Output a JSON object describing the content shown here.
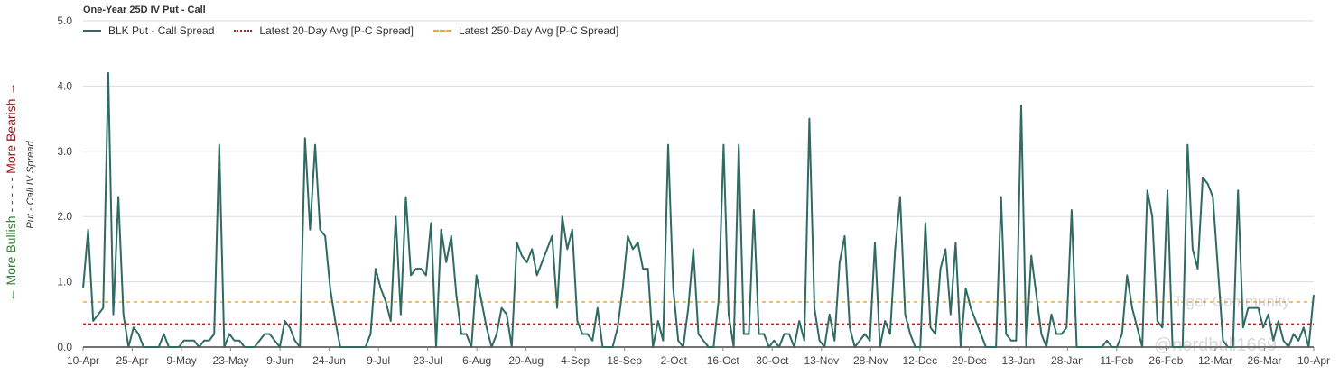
{
  "chart_data": {
    "type": "line",
    "title": "One-Year 25D IV Put - Call",
    "ylabel": "Put - Call IV Spread",
    "side_label": {
      "bullish": "← More Bullish",
      "dashes": "- - - - -",
      "bearish": "More Bearish →",
      "bullish_color": "#2e7d32",
      "bearish_color": "#8b1a1a"
    },
    "ylim": [
      0,
      5
    ],
    "yticks": [
      "0.0",
      "1.0",
      "2.0",
      "3.0",
      "4.0",
      "5.0"
    ],
    "xticks": [
      "10-Apr",
      "25-Apr",
      "9-May",
      "23-May",
      "9-Jun",
      "24-Jun",
      "9-Jul",
      "23-Jul",
      "6-Aug",
      "20-Aug",
      "4-Sep",
      "18-Sep",
      "2-Oct",
      "16-Oct",
      "30-Oct",
      "13-Nov",
      "28-Nov",
      "12-Dec",
      "29-Dec",
      "13-Jan",
      "28-Jan",
      "11-Feb",
      "26-Feb",
      "12-Mar",
      "26-Mar",
      "10-Apr"
    ],
    "grid": true,
    "legend_position": "top-left",
    "series": [
      {
        "name": "BLK Put - Call Spread",
        "color": "#2f6b63",
        "style": "solid",
        "values": [
          0.9,
          1.8,
          0.4,
          0.5,
          0.6,
          4.2,
          0.5,
          2.3,
          0.5,
          0,
          0.3,
          0.2,
          0,
          0,
          0,
          0,
          0.2,
          0,
          0,
          0,
          0.1,
          0.1,
          0.1,
          0,
          0.1,
          0.1,
          0.2,
          3.1,
          0,
          0.2,
          0.1,
          0.1,
          0,
          0,
          0,
          0.1,
          0.2,
          0.2,
          0.1,
          0,
          0.4,
          0.3,
          0.1,
          0,
          3.2,
          1.8,
          3.1,
          1.8,
          1.7,
          0.9,
          0.4,
          0,
          0,
          0,
          0,
          0,
          0,
          0.2,
          1.2,
          0.9,
          0.7,
          0.4,
          2,
          0.5,
          2.3,
          1.1,
          1.2,
          1.2,
          1.1,
          1.9,
          0,
          1.8,
          1.3,
          1.7,
          0.8,
          0.2,
          0.2,
          0,
          1.1,
          0.7,
          0.3,
          0,
          0.2,
          0.6,
          0.5,
          0,
          1.6,
          1.4,
          1.3,
          1.5,
          1.1,
          1.3,
          1.5,
          1.7,
          0.6,
          2,
          1.5,
          1.8,
          0.4,
          0.2,
          0.2,
          0.1,
          0.6,
          0,
          0,
          0,
          0.3,
          0.9,
          1.7,
          1.5,
          1.6,
          1.2,
          1.2,
          0,
          0.4,
          0.1,
          3.1,
          0.9,
          0.1,
          0,
          0.6,
          1.5,
          0.2,
          0.1,
          0,
          0,
          0.7,
          3.1,
          0.5,
          0,
          3.1,
          0.2,
          0.2,
          2.1,
          0.2,
          0.2,
          0,
          0.1,
          0,
          0.2,
          0.2,
          0,
          0.4,
          0.1,
          3.5,
          0.6,
          0.1,
          0,
          0.5,
          0.1,
          1.3,
          1.7,
          0.3,
          0,
          0.1,
          0.2,
          0.1,
          1.6,
          0,
          0.4,
          0.2,
          1.5,
          2.3,
          0.5,
          0.2,
          0,
          0,
          1.9,
          0.3,
          0.2,
          1.2,
          1.5,
          0.5,
          1.6,
          0,
          0.9,
          0.6,
          0.4,
          0.2,
          0,
          0,
          0,
          2.3,
          0.2,
          0.1,
          0.1,
          3.7,
          0,
          1.4,
          0.8,
          0.2,
          0,
          0.5,
          0.2,
          0.2,
          0.3,
          2.1,
          0,
          0,
          0,
          0,
          0,
          0,
          0.1,
          0,
          0,
          0.2,
          1.1,
          0.6,
          0.3,
          0,
          2.4,
          2,
          0.4,
          0.3,
          2.4,
          0,
          0,
          0,
          3.1,
          1.5,
          1.2,
          2.6,
          2.5,
          2.3,
          1.2,
          0.1,
          0,
          0,
          2.4,
          0.3,
          0.6,
          0.6,
          0.6,
          0.3,
          0.5,
          0.1,
          0.4,
          0.1,
          0,
          0.2,
          0.1,
          0.3,
          0,
          0.8
        ]
      },
      {
        "name": "Latest 20-Day Avg [P-C Spread]",
        "color": "#b22222",
        "style": "dotted",
        "value": 0.35
      },
      {
        "name": "Latest 250-Day Avg [P-C Spread]",
        "color": "#f0a830",
        "style": "dashed",
        "value": 0.69
      }
    ]
  },
  "watermarks": {
    "brand": "Tiger Community",
    "handle": "@nerdbull1669"
  }
}
